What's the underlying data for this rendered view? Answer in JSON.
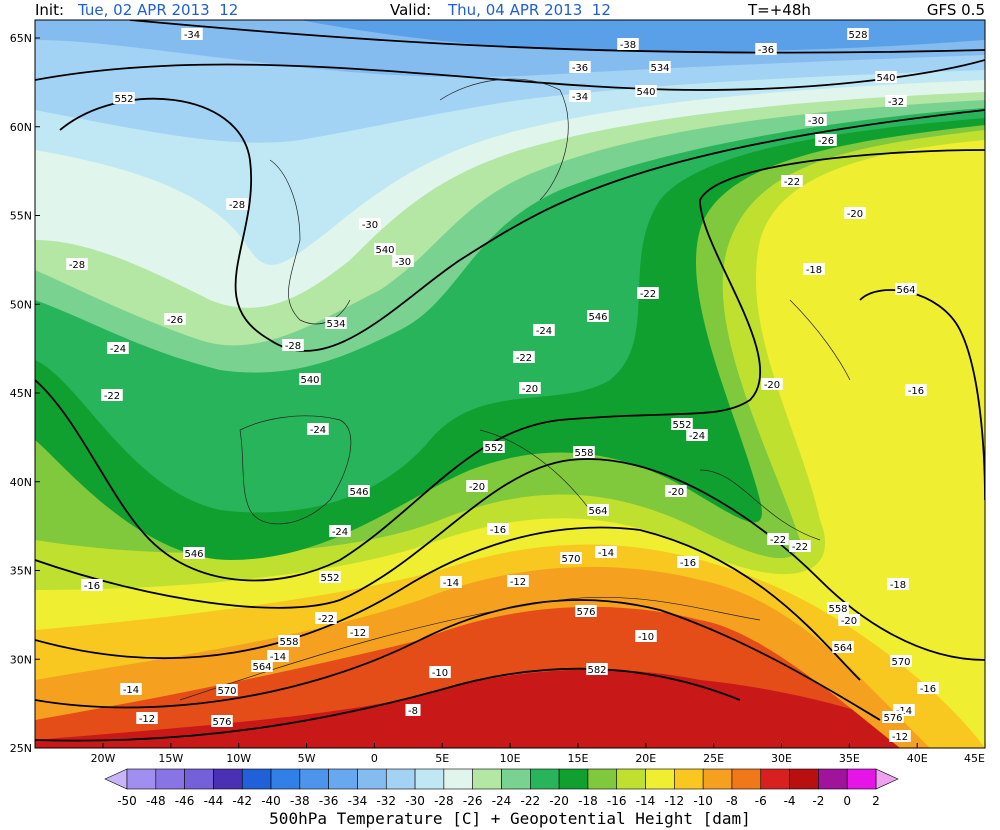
{
  "header": {
    "init_label": "Init:",
    "init": "Tue, 02 APR 2013  12",
    "valid_label": "Valid:",
    "valid": "Thu, 04 APR 2013  12",
    "lead": "T=+48h",
    "model": "GFS 0.5"
  },
  "map": {
    "lat_labels": [
      "65N",
      "60N",
      "55N",
      "50N",
      "45N",
      "40N",
      "35N",
      "30N",
      "25N"
    ],
    "lon_labels": [
      "20W",
      "15W",
      "10W",
      "5W",
      "0",
      "5E",
      "10E",
      "15E",
      "20E",
      "25E",
      "30E",
      "35E",
      "40E",
      "45E"
    ],
    "contour_labels": [
      "-34",
      "-38",
      "-36",
      "528",
      "-36",
      "534",
      "540",
      "-34",
      "540",
      "-32",
      "552",
      "-30",
      "-26",
      "-22",
      "-28",
      "-20",
      "-30",
      "540",
      "-30",
      "-28",
      "-18",
      "564",
      "-22",
      "-26",
      "534",
      "546",
      "-24",
      "-24",
      "-28",
      "-22",
      "540",
      "-20",
      "-20",
      "-16",
      "-22",
      "-24",
      "552",
      "-24",
      "552",
      "558",
      "-20",
      "-20",
      "546",
      "564",
      "-16",
      "-24",
      "-22",
      "-22",
      "546",
      "570",
      "-14",
      "-16",
      "552",
      "-14",
      "-12",
      "-16",
      "-18",
      "558",
      "-20",
      "576",
      "-22",
      "-12",
      "-10",
      "558",
      "-14",
      "564",
      "564",
      "570",
      "-10",
      "582",
      "-14",
      "570",
      "-16",
      "-8",
      "-12",
      "576",
      "-14",
      "576",
      "-12"
    ]
  },
  "colorbar": {
    "ticks": [
      -50,
      -48,
      -46,
      -44,
      -42,
      -40,
      -38,
      -36,
      -34,
      -32,
      -30,
      -28,
      -26,
      -24,
      -22,
      -20,
      -18,
      -16,
      -14,
      -12,
      -10,
      -8,
      -6,
      -4,
      -2,
      0,
      2
    ],
    "caption": "500hPa Temperature [C] + Geopotential Height [dam]"
  }
}
